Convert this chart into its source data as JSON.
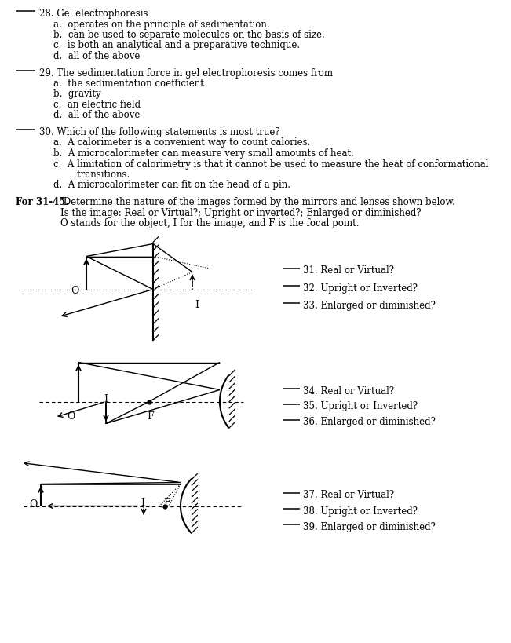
{
  "bg_color": "#ffffff",
  "text_color": "#000000",
  "font_family": "serif",
  "q28_line": "28. Gel electrophoresis",
  "q28_opts": [
    "a.  operates on the principle of sedimentation.",
    "b.  can be used to separate molecules on the basis of size.",
    "c.  is both an analytical and a preparative technique.",
    "d.  all of the above"
  ],
  "q29_line": "29. The sedimentation force in gel electrophoresis comes from",
  "q29_opts": [
    "a.  the sedimentation coefficient",
    "b.  gravity",
    "c.  an electric field",
    "d.  all of the above"
  ],
  "q30_line": "30. Which of the following statements is most true?",
  "q30_opts": [
    "a.  A calorimeter is a convenient way to count calories.",
    "b.  A microcalorimeter can measure very small amounts of heat.",
    "c.  A limitation of calorimetry is that it cannot be used to measure the heat of conformational",
    "        transitions.",
    "d.  A microcalorimeter can fit on the head of a pin."
  ],
  "for_bold": "For 31-45.",
  "for_rest1": " Determine the nature of the images formed by the mirrors and lenses shown below.",
  "for_rest2": "Is the image: Real or Virtual?; Upright or inverted?; Enlarged or diminished?",
  "for_rest3": "O stands for the object, I for the image, and F is the focal point.",
  "dq1": [
    "31. Real or Virtual?",
    "32. Upright or Inverted?",
    "33. Enlarged or diminished?"
  ],
  "dq2": [
    "34. Real or Virtual?",
    "35. Upright or Inverted?",
    "36. Enlarged or diminished?"
  ],
  "dq3": [
    "37. Real or Virtual?",
    "38. Upright or Inverted?",
    "39. Enlarged or diminished?"
  ]
}
